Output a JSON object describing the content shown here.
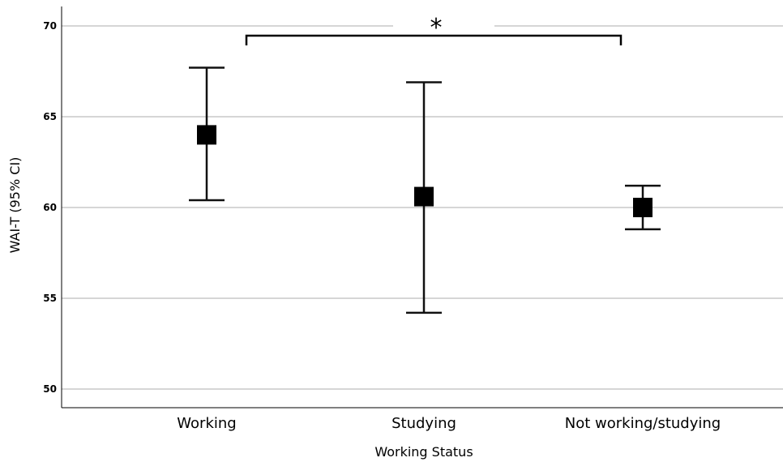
{
  "chart_data": {
    "type": "errorbar",
    "xlabel": "Working Status",
    "ylabel": "WAI-T (95% CI)",
    "ylim": [
      50,
      71.2
    ],
    "yticks": [
      50,
      55,
      60,
      65,
      70
    ],
    "grid": true,
    "categories": [
      "Working",
      "Studying",
      "Not working/studying"
    ],
    "means": [
      64.0,
      60.6,
      60.0
    ],
    "lower": [
      60.4,
      54.2,
      58.8
    ],
    "upper": [
      67.7,
      66.9,
      61.2
    ],
    "annotation": {
      "text": "*",
      "from": "Working",
      "to": "Not working/studying"
    }
  }
}
